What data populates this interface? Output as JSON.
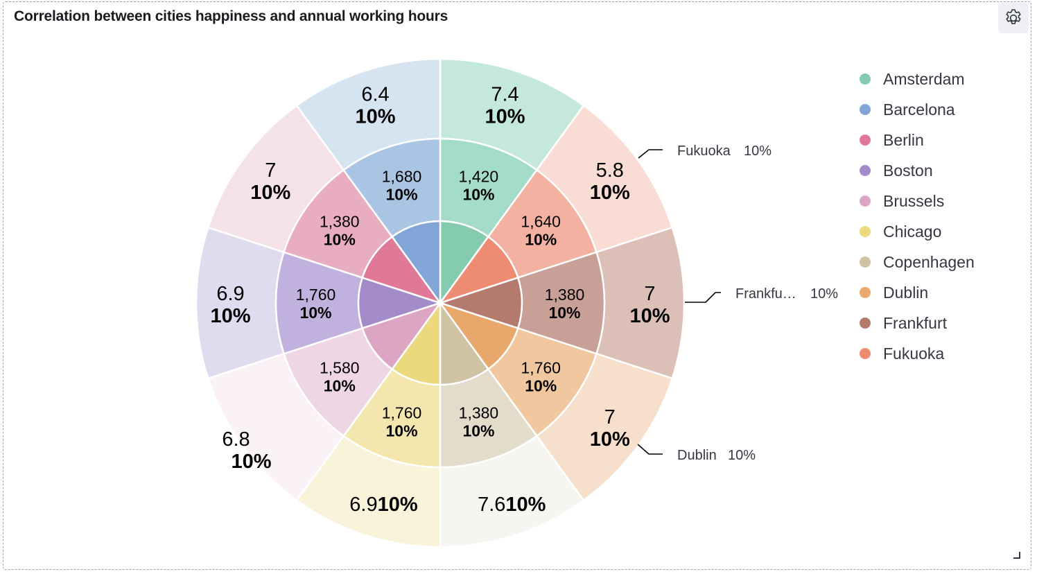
{
  "panel": {
    "title": "Correlation between cities happiness and annual working hours",
    "settings_icon": "gear-icon"
  },
  "chart_data": {
    "type": "pie",
    "subtype": "multi-ring sunburst",
    "inner_ring_colors": {
      "Amsterdam": "#84cbb0",
      "Barcelona": "#80a5d6",
      "Berlin": "#e07898",
      "Boston": "#a38ac9",
      "Brussels": "#dda5c4",
      "Chicago": "#ebd97e",
      "Copenhagen": "#d0c3a4",
      "Dublin": "#e8a86c",
      "Frankfurt": "#b57a6e",
      "Fukuoka": "#ee8b73"
    },
    "segments": [
      {
        "city": "Amsterdam",
        "hours": "1,420",
        "happiness": "7.4",
        "pct": "10%",
        "color_mid": "#a3dcc8",
        "color_outer": "#c5e8dc"
      },
      {
        "city": "Fukuoka",
        "hours": "1,640",
        "happiness": "5.8",
        "pct": "10%",
        "color_mid": "#f2b1a1",
        "color_outer": "#f9dcd3"
      },
      {
        "city": "Frankfurt",
        "hours": "1,380",
        "happiness": "7",
        "pct": "10%",
        "color_mid": "#c9a097",
        "color_outer": "#dcbfb7"
      },
      {
        "city": "Dublin",
        "hours": "1,760",
        "happiness": "7",
        "pct": "10%",
        "color_mid": "#f0c79f",
        "color_outer": "#f6e0cb"
      },
      {
        "city": "Copenhagen",
        "hours": "1,380",
        "happiness": "7.6",
        "pct": "10%",
        "color_mid": "#e3dcca",
        "color_outer": "#f6f5f1"
      },
      {
        "city": "Chicago",
        "hours": "1,760",
        "happiness": "6.9",
        "pct": "10%",
        "color_mid": "#f3e7ae",
        "color_outer": "#f8f3d9"
      },
      {
        "city": "Brussels",
        "hours": "1,580",
        "happiness": "6.8",
        "pct": "10%",
        "color_mid": "#eed6e5",
        "color_outer": "#fbf2f7"
      },
      {
        "city": "Boston",
        "hours": "1,760",
        "happiness": "6.9",
        "pct": "10%",
        "color_mid": "#c1b1df",
        "color_outer": "#e1dbef"
      },
      {
        "city": "Berlin",
        "hours": "1,380",
        "happiness": "7",
        "pct": "10%",
        "color_mid": "#e9adc1",
        "color_outer": "#f5e2e8"
      },
      {
        "city": "Barcelona",
        "hours": "1,680",
        "happiness": "6.4",
        "pct": "10%",
        "color_mid": "#aac4e4",
        "color_outer": "#d6e3f1"
      }
    ],
    "outside_labels": [
      {
        "city": "Fukuoka",
        "text": "Fukuoka",
        "pct": "10%"
      },
      {
        "city": "Frankfurt",
        "text": "Frankfu…",
        "pct": "10%"
      },
      {
        "city": "Dublin",
        "text": "Dublin",
        "pct": "10%"
      }
    ],
    "legend": {
      "placement": "right",
      "items": [
        {
          "label": "Amsterdam",
          "color": "#84cbb0"
        },
        {
          "label": "Barcelona",
          "color": "#80a5d6"
        },
        {
          "label": "Berlin",
          "color": "#e07898"
        },
        {
          "label": "Boston",
          "color": "#a38ac9"
        },
        {
          "label": "Brussels",
          "color": "#dda5c4"
        },
        {
          "label": "Chicago",
          "color": "#ebd97e"
        },
        {
          "label": "Copenhagen",
          "color": "#d0c3a4"
        },
        {
          "label": "Dublin",
          "color": "#e8a86c"
        },
        {
          "label": "Frankfurt",
          "color": "#b57a6e"
        },
        {
          "label": "Fukuoka",
          "color": "#ee8b73"
        }
      ]
    }
  }
}
